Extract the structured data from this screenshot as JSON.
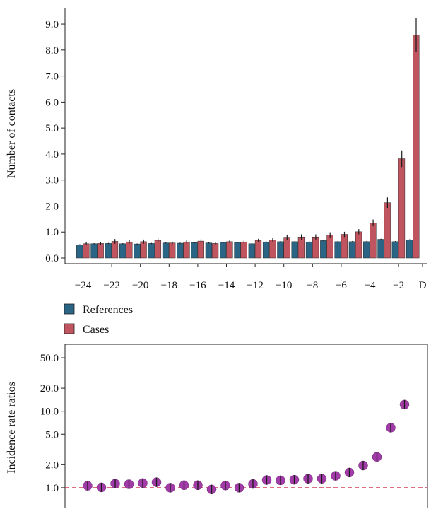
{
  "chart_data": [
    {
      "type": "bar",
      "ylabel": "Number of contacts",
      "ylim": [
        0,
        9.6
      ],
      "yticks": [
        "0.0",
        "1.0",
        "2.0",
        "3.0",
        "4.0",
        "5.0",
        "6.0",
        "7.0",
        "8.0",
        "9.0"
      ],
      "categories": [
        -24,
        -23,
        -22,
        -21,
        -20,
        -19,
        -18,
        -17,
        -16,
        -15,
        -14,
        -13,
        -12,
        -11,
        -10,
        -9,
        -8,
        -7,
        -6,
        -5,
        -4,
        -3,
        -2,
        -1
      ],
      "xticks": [
        "−24",
        "−22",
        "−20",
        "−18",
        "−16",
        "−14",
        "−12",
        "−10",
        "−8",
        "−6",
        "−4",
        "−2",
        "D"
      ],
      "legend_position": "bottom-left",
      "series": [
        {
          "name": "References",
          "color": "#2b6585",
          "values": [
            0.51,
            0.55,
            0.56,
            0.55,
            0.54,
            0.56,
            0.58,
            0.57,
            0.59,
            0.58,
            0.6,
            0.6,
            0.55,
            0.62,
            0.63,
            0.63,
            0.62,
            0.67,
            0.63,
            0.63,
            0.63,
            0.72,
            0.63,
            0.7
          ],
          "errors": [
            0.02,
            0.02,
            0.02,
            0.02,
            0.02,
            0.02,
            0.02,
            0.02,
            0.02,
            0.02,
            0.02,
            0.02,
            0.02,
            0.02,
            0.02,
            0.02,
            0.02,
            0.02,
            0.02,
            0.02,
            0.02,
            0.02,
            0.02,
            0.02
          ]
        },
        {
          "name": "Cases",
          "color": "#c0545f",
          "values": [
            0.55,
            0.56,
            0.64,
            0.62,
            0.63,
            0.68,
            0.58,
            0.62,
            0.65,
            0.56,
            0.63,
            0.62,
            0.68,
            0.7,
            0.8,
            0.81,
            0.81,
            0.89,
            0.91,
            1.01,
            1.35,
            2.13,
            3.82,
            8.58
          ],
          "errors": [
            0.06,
            0.06,
            0.09,
            0.06,
            0.08,
            0.08,
            0.05,
            0.06,
            0.07,
            0.05,
            0.06,
            0.05,
            0.06,
            0.07,
            0.1,
            0.1,
            0.1,
            0.1,
            0.1,
            0.1,
            0.13,
            0.2,
            0.32,
            0.65
          ]
        }
      ]
    },
    {
      "type": "scatter",
      "ylabel": "Incidence rate ratios",
      "yscale": "log",
      "ylim": [
        0.55,
        75
      ],
      "yticks": [
        {
          "value": 1,
          "label": "1.0"
        },
        {
          "value": 2,
          "label": "2.0"
        },
        {
          "value": 5,
          "label": "5.0"
        },
        {
          "value": 10,
          "label": "10.0"
        },
        {
          "value": 20,
          "label": "20.0"
        },
        {
          "value": 50,
          "label": "50.0"
        }
      ],
      "x": [
        -24,
        -23,
        -22,
        -21,
        -20,
        -19,
        -18,
        -17,
        -16,
        -15,
        -14,
        -13,
        -12,
        -11,
        -10,
        -9,
        -8,
        -7,
        -6,
        -5,
        -4,
        -3,
        -2,
        -1
      ],
      "series": [
        {
          "color": "#a13ba7",
          "values": [
            1.06,
            1.01,
            1.13,
            1.11,
            1.15,
            1.18,
            1.0,
            1.08,
            1.08,
            0.95,
            1.07,
            1.0,
            1.12,
            1.26,
            1.25,
            1.27,
            1.31,
            1.31,
            1.43,
            1.58,
            1.95,
            2.53,
            6.1,
            12.2
          ]
        }
      ],
      "reference_line": {
        "y": 1.0,
        "color": "#d43c5a",
        "style": "dashed"
      }
    }
  ],
  "legend": {
    "items": [
      {
        "label": "References",
        "color": "#2b6585"
      },
      {
        "label": "Cases",
        "color": "#c0545f"
      }
    ]
  }
}
